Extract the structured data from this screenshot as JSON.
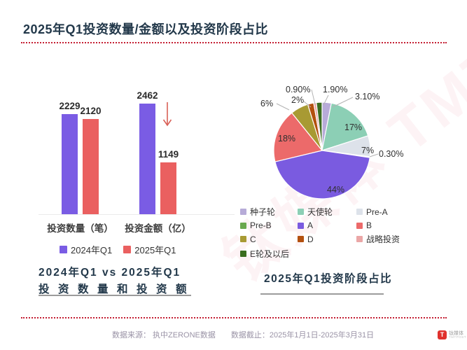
{
  "page": {
    "title": "2025年Q1投资数量/金额以及投资阶段占比"
  },
  "chart_data": [
    {
      "type": "bar",
      "title": "2024年Q1 vs 2025年Q1 投资数量和投资额",
      "caption_line1": "2024年Q1 vs 2025年Q1",
      "caption_line2": "投资数量和投资额",
      "categories": [
        "投资数量（笔）",
        "投资金额（亿）"
      ],
      "series": [
        {
          "name": "2024年Q1",
          "color": "#7a5ce4",
          "values": [
            2229,
            2462
          ]
        },
        {
          "name": "2025年Q1",
          "color": "#ea6060",
          "values": [
            2120,
            1149
          ]
        }
      ],
      "ylim": [
        0,
        2500
      ],
      "grid": false,
      "value_labels": true,
      "legend_position": "bottom",
      "annotation": {
        "type": "decline-arrow",
        "glyph": "↓",
        "target": "投资金额 2025年Q1"
      }
    },
    {
      "type": "pie",
      "title": "2025年Q1投资阶段占比",
      "legend_position": "bottom",
      "slices": [
        {
          "label": "种子轮",
          "value": 3.1,
          "display": "3.10%",
          "color": "#b7abd8"
        },
        {
          "label": "天使轮",
          "value": 17,
          "display": "17%",
          "color": "#8ccfb5"
        },
        {
          "label": "Pre-A",
          "value": 7,
          "display": "7%",
          "color": "#dde2ea"
        },
        {
          "label": "Pre-B",
          "value": 0.3,
          "display": "0.30%",
          "color": "#6aa84f"
        },
        {
          "label": "A",
          "value": 44,
          "display": "44%",
          "color": "#7a5be0"
        },
        {
          "label": "B",
          "value": 18,
          "display": "18%",
          "color": "#ec6a6a"
        },
        {
          "label": "C",
          "value": 6,
          "display": "6%",
          "color": "#a89a33"
        },
        {
          "label": "D",
          "value": 2,
          "display": "2%",
          "color": "#b3500e"
        },
        {
          "label": "战略投资",
          "value": 0.9,
          "display": "0.90%",
          "color": "#eba7a7"
        },
        {
          "label": "E轮及以后",
          "value": 1.9,
          "display": "1.90%",
          "color": "#3a6d1f"
        }
      ]
    }
  ],
  "footer": {
    "source": "数据来源： 执中ZERONE数据",
    "deadline": "数据截止：2025年1月1日-2025年3月31日",
    "logo_text": "钛媒体",
    "logo_subtext": "TMTPOST",
    "logo_glyph": "T"
  },
  "watermark": {
    "text": "钛媒体 TMTPOST"
  },
  "colors": {
    "accent_red": "#c41f33",
    "title_navy": "#22384a",
    "underline_gray": "#9b9b9b"
  }
}
